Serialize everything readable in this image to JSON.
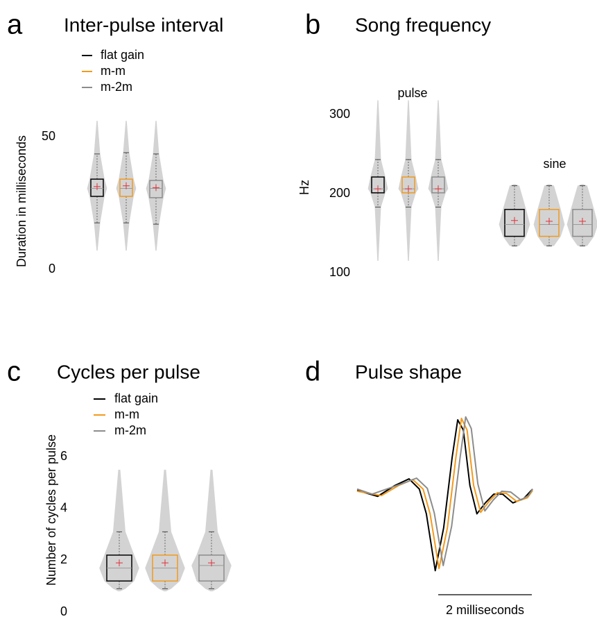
{
  "chart_data": [
    {
      "type": "box",
      "panel_label": "a",
      "title": "Inter-pulse interval",
      "ylabel": "Duration in milliseconds",
      "ylim": [
        0,
        57
      ],
      "yticks": [
        0,
        50
      ],
      "groups": [
        {
          "boxes": [
            {
              "name": "flat gain",
              "color": "#000000",
              "min": 7,
              "whisker_low": 17.5,
              "q1": 27.5,
              "median": 30.5,
              "q3": 34,
              "whisker_high": 43.5,
              "max": 56,
              "mean": 31.2
            },
            {
              "name": "m-m",
              "color": "#f29a1c",
              "min": 7,
              "whisker_low": 17.5,
              "q1": 27.5,
              "median": 30.5,
              "q3": 34,
              "whisker_high": 44,
              "max": 56,
              "mean": 31.5
            },
            {
              "name": "m-2m",
              "color": "#8c8c8c",
              "min": 7,
              "whisker_low": 17,
              "q1": 27,
              "median": 30.5,
              "q3": 33.5,
              "whisker_high": 43.5,
              "max": 56,
              "mean": 30.8
            }
          ]
        }
      ]
    },
    {
      "type": "box",
      "panel_label": "b",
      "title": "Song frequency",
      "ylabel": "Hz",
      "ylim": [
        100,
        320
      ],
      "yticks": [
        100,
        200,
        300
      ],
      "groups": [
        {
          "label": "pulse",
          "boxes": [
            {
              "color": "#000000",
              "min": 115,
              "whisker_low": 183,
              "q1": 201,
              "median": 206,
              "q3": 221,
              "whisker_high": 243,
              "max": 318,
              "mean": 206
            },
            {
              "color": "#f29a1c",
              "min": 115,
              "whisker_low": 183,
              "q1": 201,
              "median": 206,
              "q3": 221,
              "whisker_high": 243,
              "max": 318,
              "mean": 206
            },
            {
              "color": "#8c8c8c",
              "min": 115,
              "whisker_low": 183,
              "q1": 201,
              "median": 206,
              "q3": 221,
              "whisker_high": 243,
              "max": 318,
              "mean": 206
            }
          ]
        },
        {
          "label": "sine",
          "boxes": [
            {
              "color": "#000000",
              "min": 133,
              "whisker_low": 134,
              "q1": 146,
              "median": 161,
              "q3": 180,
              "whisker_high": 210,
              "max": 212,
              "mean": 166
            },
            {
              "color": "#f29a1c",
              "min": 133,
              "whisker_low": 134,
              "q1": 146,
              "median": 161,
              "q3": 180,
              "whisker_high": 210,
              "max": 212,
              "mean": 165
            },
            {
              "color": "#8c8c8c",
              "min": 133,
              "whisker_low": 134,
              "q1": 146,
              "median": 161,
              "q3": 180,
              "whisker_high": 210,
              "max": 212,
              "mean": 165
            }
          ]
        }
      ]
    },
    {
      "type": "box",
      "panel_label": "c",
      "title": "Cycles per pulse",
      "ylabel": "Number of cycles per pulse",
      "ylim": [
        0,
        6.2
      ],
      "yticks": [
        0,
        2,
        4,
        6
      ],
      "groups": [
        {
          "boxes": [
            {
              "name": "flat gain",
              "color": "#000000",
              "min": 0.8,
              "whisker_low": 0.9,
              "q1": 1.2,
              "median": 1.7,
              "q3": 2.2,
              "whisker_high": 3.1,
              "max": 5.5,
              "mean": 1.9
            },
            {
              "name": "m-m",
              "color": "#f29a1c",
              "min": 0.8,
              "whisker_low": 0.9,
              "q1": 1.2,
              "median": 1.7,
              "q3": 2.2,
              "whisker_high": 3.1,
              "max": 5.5,
              "mean": 1.9
            },
            {
              "name": "m-2m",
              "color": "#8c8c8c",
              "min": 0.8,
              "whisker_low": 0.9,
              "q1": 1.2,
              "median": 1.8,
              "q3": 2.2,
              "whisker_high": 3.1,
              "max": 5.5,
              "mean": 1.9
            }
          ]
        }
      ]
    },
    {
      "type": "line",
      "panel_label": "d",
      "title": "Pulse shape",
      "xlim": [
        0,
        3.9
      ],
      "ylim": [
        -1.1,
        1.05
      ],
      "scale_bar": {
        "value": 2,
        "label": "2 milliseconds"
      },
      "series": [
        {
          "color": "#000000",
          "x": [
            0,
            0.44,
            0.81,
            1.11,
            1.33,
            1.48,
            1.67,
            1.85,
            2.03,
            2.15,
            2.27,
            2.41,
            2.56,
            2.74,
            2.92,
            3.11,
            3.33,
            3.56,
            3.75
          ],
          "values": [
            0.03,
            -0.05,
            0.1,
            0.19,
            0.05,
            -0.29,
            -1.07,
            -0.48,
            0.48,
            1.0,
            0.86,
            0.1,
            -0.29,
            -0.14,
            -0.02,
            -0.02,
            -0.14,
            -0.08,
            0.05
          ]
        },
        {
          "color": "#f29a1c",
          "x": [
            0,
            0.52,
            0.89,
            1.19,
            1.41,
            1.56,
            1.75,
            1.93,
            2.11,
            2.23,
            2.35,
            2.49,
            2.64,
            2.82,
            3.0,
            3.19,
            3.41,
            3.64,
            3.75
          ],
          "values": [
            0.02,
            -0.04,
            0.1,
            0.18,
            0.05,
            -0.29,
            -1.04,
            -0.48,
            0.48,
            1.02,
            0.86,
            0.1,
            -0.27,
            -0.12,
            0.0,
            -0.01,
            -0.12,
            -0.07,
            0.03
          ]
        },
        {
          "color": "#8c8c8c",
          "x": [
            0,
            0.32,
            0.99,
            1.27,
            1.5,
            1.65,
            1.84,
            2.02,
            2.2,
            2.32,
            2.44,
            2.58,
            2.73,
            2.91,
            3.09,
            3.28,
            3.5,
            3.66,
            3.75
          ],
          "values": [
            0.05,
            -0.02,
            0.13,
            0.2,
            0.06,
            -0.28,
            -1.0,
            -0.46,
            0.48,
            1.04,
            0.88,
            0.12,
            -0.25,
            -0.1,
            0.02,
            0.01,
            -0.1,
            -0.04,
            0.05
          ]
        }
      ]
    }
  ]
}
